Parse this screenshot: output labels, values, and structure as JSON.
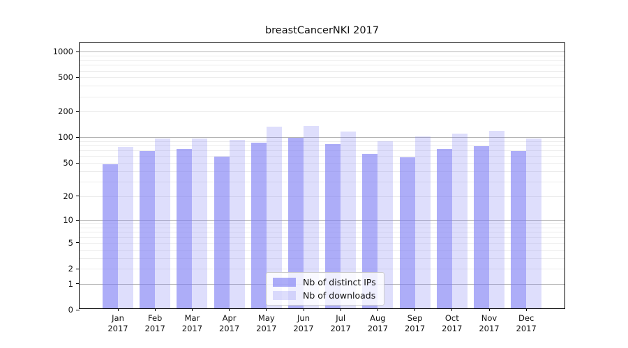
{
  "title": "breastCancerNKI 2017",
  "chart_data": {
    "type": "bar",
    "title": "breastCancerNKI 2017",
    "categories": [
      "Jan",
      "Feb",
      "Mar",
      "Apr",
      "May",
      "Jun",
      "Jul",
      "Aug",
      "Sep",
      "Oct",
      "Nov",
      "Dec"
    ],
    "year_label": "2017",
    "series": [
      {
        "name": "Nb of distinct IPs",
        "color": "#7b7bf3",
        "opacity": 0.62,
        "composite_hex": "#a9a9f7",
        "values": [
          46,
          66,
          70,
          57,
          84,
          96,
          80,
          62,
          56,
          70,
          76,
          66
        ]
      },
      {
        "name": "Nb of downloads",
        "color": "#7b7bf3",
        "opacity": 0.25,
        "composite_hex": "#dedef9",
        "values": [
          74,
          94,
          93,
          90,
          128,
          132,
          113,
          87,
          98,
          107,
          115,
          94
        ]
      }
    ],
    "y_scale": "log10(1+y)",
    "y_ticks": [
      1000,
      500,
      200,
      100,
      50,
      20,
      10,
      5,
      2,
      1,
      0
    ],
    "ylim": [
      0,
      1256
    ],
    "grid": {
      "major_at": [
        1,
        10,
        100,
        1000
      ],
      "major_color": "#b3b3b3",
      "minor_color": "#ececec",
      "grid_on": true
    },
    "legend": {
      "position": "lower center",
      "entries": [
        "Nb of distinct IPs",
        "Nb of downloads"
      ]
    },
    "xlabel": "",
    "ylabel": ""
  }
}
